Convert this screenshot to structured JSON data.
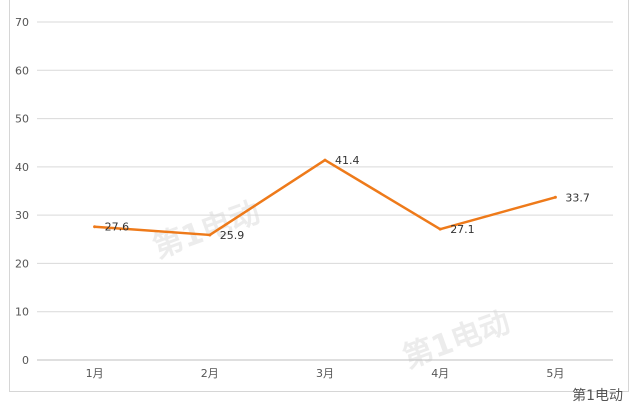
{
  "chart_data": {
    "type": "line",
    "title": "",
    "xlabel": "",
    "ylabel": "",
    "categories": [
      "1月",
      "2月",
      "3月",
      "4月",
      "5月"
    ],
    "series": [
      {
        "values": [
          27.6,
          25.9,
          41.4,
          27.1,
          33.7
        ]
      }
    ],
    "data_labels": [
      "27.6",
      "25.9",
      "41.4",
      "27.1",
      "33.7"
    ],
    "ylim": [
      0,
      70
    ],
    "yticks": [
      0,
      10,
      20,
      30,
      40,
      50,
      60,
      70
    ],
    "grid": true,
    "line_color": "#ee7a1a",
    "grid_color": "#d9d9d9"
  },
  "watermark": {
    "text": "第1电动"
  },
  "footer_logo": {
    "text": "第1电动"
  }
}
